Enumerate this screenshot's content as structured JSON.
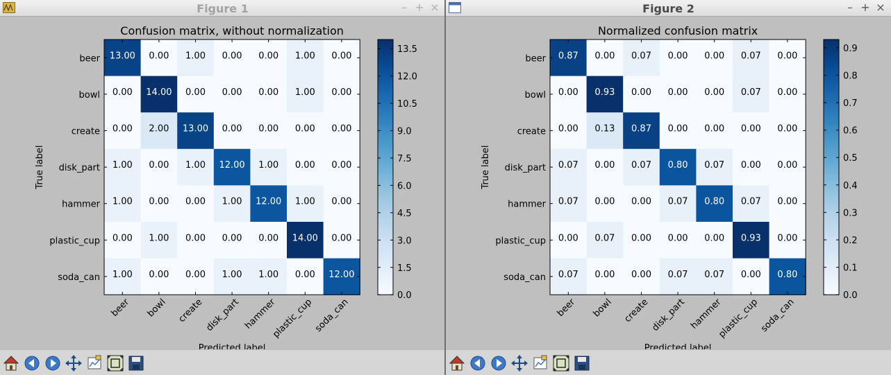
{
  "windows": [
    {
      "title": "Figure 1",
      "toolbar": [
        "home-icon",
        "back-icon",
        "forward-icon",
        "pan-icon",
        "subplots-icon",
        "zoom-icon",
        "save-icon"
      ]
    },
    {
      "title": "Figure 2",
      "toolbar": [
        "home-icon",
        "back-icon",
        "forward-icon",
        "pan-icon",
        "subplots-icon",
        "zoom-icon",
        "save-icon"
      ]
    }
  ],
  "chart_data": [
    {
      "type": "heatmap",
      "title": "Confusion matrix, without normalization",
      "xlabel": "Predicted label",
      "ylabel": "True label",
      "categories": [
        "beer",
        "bowl",
        "create",
        "disk_part",
        "hammer",
        "plastic_cup",
        "soda_can"
      ],
      "values": [
        [
          13,
          0,
          1,
          0,
          0,
          1,
          0
        ],
        [
          0,
          14,
          0,
          0,
          0,
          1,
          0
        ],
        [
          0,
          2,
          13,
          0,
          0,
          0,
          0
        ],
        [
          1,
          0,
          1,
          12,
          1,
          0,
          0
        ],
        [
          1,
          0,
          0,
          1,
          12,
          1,
          0
        ],
        [
          0,
          1,
          0,
          0,
          0,
          14,
          0
        ],
        [
          1,
          0,
          0,
          1,
          1,
          0,
          12
        ]
      ],
      "value_format": "0.00",
      "colormap": "Blues",
      "colorbar": {
        "min": 0,
        "max": 14,
        "ticks": [
          "0.0",
          "1.5",
          "3.0",
          "4.5",
          "6.0",
          "7.5",
          "9.0",
          "10.5",
          "12.0",
          "13.5"
        ]
      }
    },
    {
      "type": "heatmap",
      "title": "Normalized confusion matrix",
      "xlabel": "Predicted label",
      "ylabel": "True label",
      "categories": [
        "beer",
        "bowl",
        "create",
        "disk_part",
        "hammer",
        "plastic_cup",
        "soda_can"
      ],
      "values": [
        [
          0.87,
          0.0,
          0.07,
          0.0,
          0.0,
          0.07,
          0.0
        ],
        [
          0.0,
          0.93,
          0.0,
          0.0,
          0.0,
          0.07,
          0.0
        ],
        [
          0.0,
          0.13,
          0.87,
          0.0,
          0.0,
          0.0,
          0.0
        ],
        [
          0.07,
          0.0,
          0.07,
          0.8,
          0.07,
          0.0,
          0.0
        ],
        [
          0.07,
          0.0,
          0.0,
          0.07,
          0.8,
          0.07,
          0.0
        ],
        [
          0.0,
          0.07,
          0.0,
          0.0,
          0.0,
          0.93,
          0.0
        ],
        [
          0.07,
          0.0,
          0.0,
          0.07,
          0.07,
          0.0,
          0.8
        ]
      ],
      "value_format": "0.00",
      "colormap": "Blues",
      "colorbar": {
        "min": 0,
        "max": 0.93,
        "ticks": [
          "0.0",
          "0.1",
          "0.2",
          "0.3",
          "0.4",
          "0.5",
          "0.6",
          "0.7",
          "0.8",
          "0.9"
        ]
      }
    }
  ]
}
